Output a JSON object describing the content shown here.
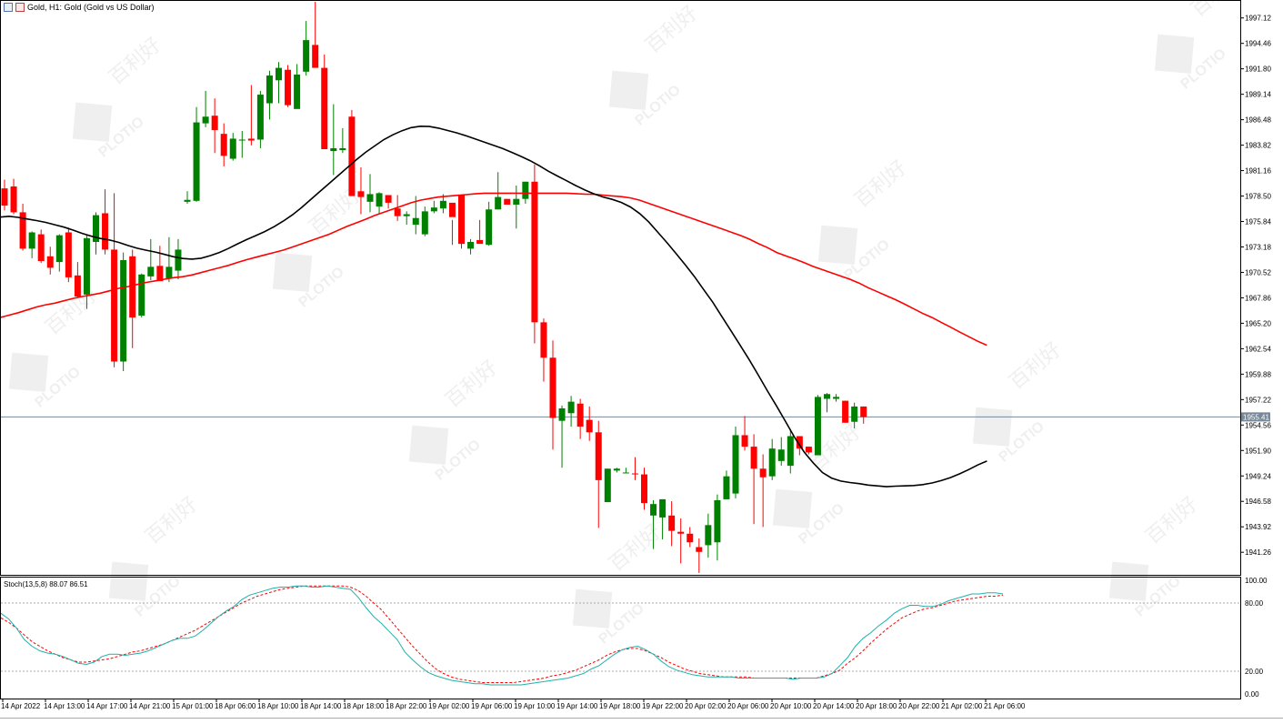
{
  "window": {
    "title": "Gold, H1:  Gold (Gold vs US Dollar)"
  },
  "watermark": {
    "brand": "PLOTIO",
    "cjk": "百利好"
  },
  "indicator": {
    "label": "Stoch(13,5,8) 88.07 86.51"
  },
  "colors": {
    "bull": "#008000",
    "bear": "#ff0000",
    "ma_fast": "#000000",
    "ma_slow": "#ff0000",
    "stoch_main": "#20b2aa",
    "stoch_signal": "#ff0000",
    "price_line": "#778899"
  },
  "chart_data": [
    {
      "type": "candlestick",
      "symbol": "Gold",
      "timeframe": "H1",
      "y_ticks": [
        "1997.12",
        "1994.46",
        "1991.80",
        "1989.14",
        "1986.48",
        "1983.82",
        "1981.16",
        "1978.50",
        "1975.84",
        "1973.18",
        "1970.52",
        "1967.86",
        "1965.20",
        "1962.54",
        "1959.88",
        "1957.22",
        "1954.56",
        "1951.90",
        "1949.24",
        "1946.58",
        "1943.92",
        "1941.26"
      ],
      "ylim": [
        1938.9,
        1998.9
      ],
      "current_price": "1955.41",
      "current_price_value": 1955.41,
      "x_ticks": [
        "14 Apr 2022",
        "14 Apr 13:00",
        "14 Apr 17:00",
        "14 Apr 21:00",
        "15 Apr 01:00",
        "18 Apr 06:00",
        "18 Apr 10:00",
        "18 Apr 14:00",
        "18 Apr 18:00",
        "18 Apr 22:00",
        "19 Apr 02:00",
        "19 Apr 06:00",
        "19 Apr 10:00",
        "19 Apr 14:00",
        "19 Apr 18:00",
        "19 Apr 22:00",
        "20 Apr 02:00",
        "20 Apr 06:00",
        "20 Apr 10:00",
        "20 Apr 14:00",
        "20 Apr 18:00",
        "20 Apr 22:00",
        "21 Apr 02:00",
        "21 Apr 06:00"
      ],
      "candles_ohlc": [
        [
          1979.3,
          1980.2,
          1977.0,
          1977.5
        ],
        [
          1979.5,
          1980.3,
          1976.6,
          1976.8
        ],
        [
          1976.8,
          1977.7,
          1972.8,
          1973.0
        ],
        [
          1973.0,
          1974.8,
          1972.0,
          1974.7
        ],
        [
          1974.5,
          1975.0,
          1971.5,
          1971.7
        ],
        [
          1972.2,
          1973.2,
          1970.3,
          1971.0
        ],
        [
          1971.6,
          1974.5,
          1970.6,
          1974.4
        ],
        [
          1974.7,
          1975.2,
          1969.5,
          1970.0
        ],
        [
          1970.2,
          1971.6,
          1967.9,
          1968.0
        ],
        [
          1968.2,
          1974.4,
          1966.7,
          1974.1
        ],
        [
          1973.7,
          1976.8,
          1972.4,
          1976.5
        ],
        [
          1976.7,
          1979.2,
          1972.4,
          1972.9
        ],
        [
          1972.9,
          1978.8,
          1960.6,
          1961.2
        ],
        [
          1961.2,
          1972.6,
          1960.2,
          1971.8
        ],
        [
          1972.2,
          1972.9,
          1962.6,
          1965.8
        ],
        [
          1966.0,
          1970.4,
          1965.8,
          1970.3
        ],
        [
          1970.1,
          1974.0,
          1969.7,
          1971.1
        ],
        [
          1971.2,
          1973.3,
          1969.7,
          1969.6
        ],
        [
          1969.9,
          1974.2,
          1969.5,
          1971.1
        ],
        [
          1970.7,
          1974.0,
          1969.8,
          1972.9
        ],
        [
          1977.9,
          1979.0,
          1977.7,
          1978.1
        ],
        [
          1978.0,
          1987.8,
          1977.9,
          1986.2
        ],
        [
          1986.1,
          1989.5,
          1985.7,
          1986.8
        ],
        [
          1986.9,
          1988.7,
          1983.0,
          1985.4
        ],
        [
          1985.0,
          1986.1,
          1981.6,
          1982.7
        ],
        [
          1982.4,
          1985.1,
          1982.2,
          1984.5
        ],
        [
          1984.3,
          1985.3,
          1982.5,
          1984.4
        ],
        [
          1984.5,
          1990.1,
          1983.8,
          1984.3
        ],
        [
          1984.4,
          1989.5,
          1983.5,
          1989.1
        ],
        [
          1988.2,
          1991.6,
          1986.5,
          1991.1
        ],
        [
          1990.6,
          1992.5,
          1988.2,
          1991.9
        ],
        [
          1991.7,
          1992.2,
          1987.8,
          1988.0
        ],
        [
          1987.6,
          1992.3,
          1987.7,
          1991.2
        ],
        [
          1991.5,
          1996.8,
          1991.1,
          1994.8
        ],
        [
          1994.3,
          1998.8,
          1994.0,
          1991.9
        ],
        [
          1991.9,
          1993.3,
          1983.4,
          1983.4
        ],
        [
          1983.2,
          1988.1,
          1980.7,
          1983.5
        ],
        [
          1983.3,
          1985.6,
          1983.0,
          1983.5
        ],
        [
          1986.8,
          1987.5,
          1979.0,
          1978.5
        ],
        [
          1979.0,
          1981.5,
          1976.6,
          1978.4
        ],
        [
          1977.9,
          1980.8,
          1976.8,
          1978.7
        ],
        [
          1977.4,
          1978.9,
          1976.7,
          1978.8
        ],
        [
          1978.6,
          1978.6,
          1977.2,
          1977.8
        ],
        [
          1977.2,
          1978.6,
          1975.9,
          1976.4
        ],
        [
          1976.4,
          1976.9,
          1975.5,
          1976.6
        ],
        [
          1975.5,
          1978.5,
          1974.5,
          1976.2
        ],
        [
          1974.5,
          1977.4,
          1974.3,
          1976.9
        ],
        [
          1976.9,
          1978.0,
          1976.7,
          1977.3
        ],
        [
          1977.2,
          1978.7,
          1976.7,
          1978.0
        ],
        [
          1977.8,
          1976.0,
          1973.4,
          1976.3
        ],
        [
          1978.6,
          1978.6,
          1973.0,
          1973.5
        ],
        [
          1973.0,
          1974.0,
          1972.4,
          1973.7
        ],
        [
          1973.9,
          1976.0,
          1973.9,
          1973.5
        ],
        [
          1973.4,
          1977.9,
          1973.3,
          1977.1
        ],
        [
          1977.1,
          1981.0,
          1977.1,
          1978.4
        ],
        [
          1978.2,
          1978.2,
          1977.6,
          1977.6
        ],
        [
          1977.6,
          1979.6,
          1975.1,
          1978.2
        ],
        [
          1978.2,
          1980.0,
          1977.7,
          1980.0
        ],
        [
          1980.0,
          1981.8,
          1963.1,
          1965.3
        ],
        [
          1965.3,
          1965.7,
          1959.1,
          1961.6
        ],
        [
          1961.6,
          1963.4,
          1952.0,
          1955.3
        ],
        [
          1955.0,
          1956.6,
          1950.1,
          1956.3
        ],
        [
          1955.8,
          1957.6,
          1954.4,
          1957.0
        ],
        [
          1956.8,
          1957.3,
          1953.1,
          1954.4
        ],
        [
          1955.1,
          1956.5,
          1952.9,
          1953.8
        ],
        [
          1953.8,
          1955.0,
          1943.8,
          1948.8
        ],
        [
          1946.5,
          1950.0,
          1946.5,
          1950.0
        ],
        [
          1949.8,
          1950.1,
          1949.6,
          1950.0
        ],
        [
          1949.6,
          1950.1,
          1949.6,
          1949.6
        ],
        [
          1949.5,
          1951.2,
          1948.8,
          1949.4
        ],
        [
          1949.4,
          1950.1,
          1945.7,
          1946.4
        ],
        [
          1945.1,
          1946.7,
          1941.6,
          1946.3
        ],
        [
          1944.9,
          1946.8,
          1942.6,
          1946.8
        ],
        [
          1945.1,
          1946.6,
          1941.9,
          1943.5
        ],
        [
          1943.4,
          1944.8,
          1940.1,
          1943.2
        ],
        [
          1943.2,
          1943.9,
          1941.8,
          1942.3
        ],
        [
          1941.8,
          1942.7,
          1939.1,
          1941.3
        ],
        [
          1942.0,
          1945.3,
          1940.7,
          1944.1
        ],
        [
          1942.3,
          1947.3,
          1940.4,
          1946.7
        ],
        [
          1946.8,
          1949.8,
          1946.8,
          1949.2
        ],
        [
          1947.4,
          1954.4,
          1946.9,
          1953.5
        ],
        [
          1953.5,
          1955.5,
          1951.9,
          1952.3
        ],
        [
          1952.3,
          1953.6,
          1944.2,
          1950.0
        ],
        [
          1950.0,
          1951.5,
          1943.9,
          1949.1
        ],
        [
          1949.2,
          1953.1,
          1948.8,
          1952.1
        ],
        [
          1950.8,
          1953.3,
          1950.3,
          1952.0
        ],
        [
          1950.3,
          1954.1,
          1949.5,
          1953.4
        ],
        [
          1953.4,
          1953.2,
          1951.4,
          1952.1
        ],
        [
          1952.3,
          1952.3,
          1951.5,
          1951.7
        ],
        [
          1951.4,
          1957.7,
          1951.4,
          1957.5
        ],
        [
          1957.3,
          1957.9,
          1955.9,
          1957.8
        ],
        [
          1957.3,
          1957.8,
          1957.0,
          1957.5
        ],
        [
          1957.1,
          1957.1,
          1954.8,
          1954.8
        ],
        [
          1954.9,
          1956.9,
          1954.2,
          1956.5
        ],
        [
          1956.5,
          1956.5,
          1954.7,
          1955.4
        ]
      ],
      "ma_fast": [
        1976.3,
        1976.4,
        1976.2,
        1976.0,
        1975.8,
        1975.5,
        1975.2,
        1974.8,
        1974.4,
        1974.1,
        1973.9,
        1973.6,
        1973.2,
        1972.9,
        1972.7,
        1972.4,
        1972.1,
        1971.9,
        1971.9,
        1972.2,
        1972.6,
        1973.1,
        1973.7,
        1974.2,
        1974.7,
        1975.3,
        1976.0,
        1976.8,
        1977.8,
        1978.8,
        1979.8,
        1980.8,
        1981.8,
        1982.8,
        1983.6,
        1984.4,
        1985.0,
        1985.5,
        1985.8,
        1985.8,
        1985.6,
        1985.3,
        1985.0,
        1984.6,
        1984.2,
        1983.8,
        1983.4,
        1982.9,
        1982.4,
        1981.8,
        1981.1,
        1980.5,
        1979.9,
        1979.3,
        1978.8,
        1978.4,
        1978.1,
        1977.7,
        1977.0,
        1976.0,
        1974.7,
        1973.4,
        1972.0,
        1970.6,
        1969.0,
        1967.4,
        1965.6,
        1963.8,
        1962.0,
        1960.1,
        1958.1,
        1956.2,
        1954.2,
        1952.2,
        1950.8,
        1949.6,
        1948.9,
        1948.6,
        1948.5,
        1948.3,
        1948.2,
        1948.1,
        1948.2,
        1948.2,
        1948.3,
        1948.5,
        1948.8,
        1949.2,
        1949.7,
        1950.3,
        1950.8
      ],
      "ma_fast_start_index": 0,
      "ma_slow": [
        1965.8,
        1966.1,
        1966.4,
        1966.8,
        1967.1,
        1967.3,
        1967.6,
        1967.9,
        1968.1,
        1968.3,
        1968.6,
        1968.9,
        1969.1,
        1969.4,
        1969.6,
        1969.8,
        1970.0,
        1970.1,
        1970.4,
        1970.7,
        1971.0,
        1971.3,
        1971.7,
        1972.0,
        1972.3,
        1972.6,
        1972.9,
        1973.3,
        1973.7,
        1974.1,
        1974.5,
        1975.0,
        1975.5,
        1975.9,
        1976.4,
        1976.8,
        1977.2,
        1977.6,
        1978.0,
        1978.2,
        1978.4,
        1978.5,
        1978.6,
        1978.7,
        1978.8,
        1978.8,
        1978.8,
        1978.8,
        1978.8,
        1978.8,
        1978.8,
        1978.8,
        1978.8,
        1978.7,
        1978.7,
        1978.6,
        1978.5,
        1978.4,
        1978.2,
        1977.8,
        1977.4,
        1977.0,
        1976.6,
        1976.2,
        1975.8,
        1975.4,
        1975.0,
        1974.6,
        1974.2,
        1973.6,
        1973.1,
        1972.5,
        1972.1,
        1971.7,
        1971.2,
        1970.8,
        1970.4,
        1970.0,
        1969.6,
        1969.0,
        1968.5,
        1968.0,
        1967.5,
        1966.9,
        1966.3,
        1965.8,
        1965.2,
        1964.6,
        1964.0,
        1963.4,
        1962.9
      ],
      "ma_slow_start_index": 0
    },
    {
      "type": "line",
      "name": "Stoch(13,5,8)",
      "label_values": [
        "88.07",
        "86.51"
      ],
      "ylim": [
        0,
        100
      ],
      "y_ticks": [
        "100.00",
        "80.00",
        "20.00",
        "0.00"
      ],
      "levels": [
        80,
        20
      ],
      "main": [
        71,
        66,
        58,
        48,
        42,
        38,
        36,
        35,
        33,
        30,
        27,
        26,
        28,
        33,
        35,
        35,
        34,
        35,
        36,
        38,
        41,
        44,
        47,
        49,
        49,
        51,
        56,
        62,
        68,
        73,
        77,
        83,
        87,
        89,
        91,
        93,
        94,
        94,
        95,
        95,
        94,
        94,
        95,
        94,
        93,
        92,
        85,
        76,
        68,
        62,
        55,
        48,
        37,
        30,
        24,
        19,
        16,
        14,
        12,
        11,
        10,
        9,
        9,
        8,
        8,
        8,
        8,
        8,
        9,
        10,
        11,
        12,
        13,
        14,
        16,
        18,
        22,
        25,
        30,
        35,
        39,
        41,
        42,
        39,
        35,
        29,
        24,
        21,
        19,
        17,
        16,
        15,
        15,
        15,
        15,
        14,
        14,
        14,
        14,
        14,
        14,
        14,
        13,
        14,
        14,
        14,
        15,
        18,
        25,
        32,
        42,
        49,
        54,
        60,
        65,
        71,
        75,
        78,
        78,
        77,
        77,
        79,
        82,
        84,
        86,
        88,
        88,
        89,
        89,
        88
      ],
      "main_start_index": 0,
      "signal": [
        67,
        63,
        58,
        52,
        46,
        42,
        38,
        35,
        32,
        30,
        28,
        28,
        29,
        30,
        31,
        33,
        35,
        37,
        38,
        40,
        42,
        44,
        47,
        50,
        53,
        56,
        60,
        64,
        68,
        72,
        76,
        80,
        83,
        86,
        88,
        90,
        92,
        93,
        94,
        95,
        95,
        95,
        95,
        95,
        95,
        94,
        91,
        86,
        80,
        74,
        66,
        58,
        50,
        42,
        35,
        28,
        22,
        18,
        15,
        13,
        12,
        11,
        10,
        10,
        10,
        10,
        10,
        11,
        12,
        13,
        14,
        16,
        17,
        19,
        21,
        24,
        27,
        30,
        34,
        37,
        39,
        40,
        40,
        38,
        35,
        32,
        28,
        25,
        22,
        20,
        18,
        17,
        16,
        15,
        15,
        15,
        15,
        14,
        14,
        14,
        14,
        14,
        14,
        14,
        14,
        14,
        16,
        18,
        21,
        27,
        32,
        38,
        45,
        51,
        57,
        62,
        67,
        70,
        73,
        75,
        76,
        78,
        80,
        82,
        83,
        84,
        85,
        86,
        86,
        87
      ],
      "signal_start_index": 0
    }
  ]
}
